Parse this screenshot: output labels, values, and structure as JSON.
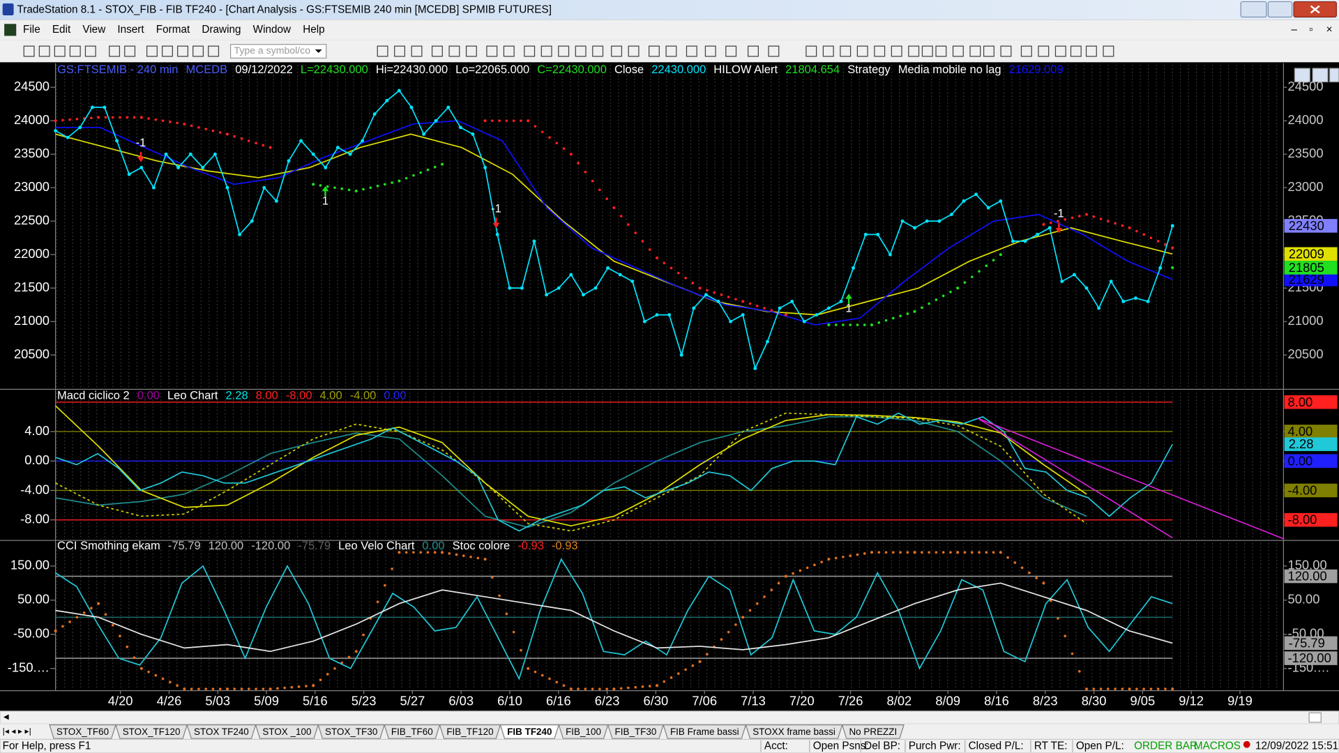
{
  "window": {
    "title": "TradeStation 8.1 - STOX_FIB - FIB TF240 - [Chart Analysis - GS:FTSEMIB  240 min  [MCEDB] SPMIB FUTURES]",
    "menu": [
      "File",
      "Edit",
      "View",
      "Insert",
      "Format",
      "Drawing",
      "Window",
      "Help"
    ],
    "symbol_box": "Type a symbol/co"
  },
  "chart_data": [
    {
      "type": "line",
      "header": [
        {
          "text": "GS:FTSEMIB - 240 min",
          "color": "#4a5cff"
        },
        {
          "text": "MCEDB",
          "color": "#4a5cff"
        },
        {
          "text": "09/12/2022",
          "color": "#ffffff"
        },
        {
          "text": "L=22430.000",
          "color": "#20e020"
        },
        {
          "text": "Hi=22430.000",
          "color": "#ffffff"
        },
        {
          "text": "Lo=22065.000",
          "color": "#ffffff"
        },
        {
          "text": "C=22430.000",
          "color": "#20e020"
        },
        {
          "text": "Close",
          "color": "#ffffff"
        },
        {
          "text": "22430.000",
          "color": "#00e5ff"
        },
        {
          "text": "HILOW Alert",
          "color": "#ffffff"
        },
        {
          "text": "21804.654",
          "color": "#20e020"
        },
        {
          "text": "Strategy",
          "color": "#ffffff"
        },
        {
          "text": "Media mobile no lag",
          "color": "#ffffff"
        },
        {
          "text": "21629.009",
          "color": "#1010ff"
        }
      ],
      "ylim": [
        20000,
        24860
      ],
      "yticks": [
        20500,
        21000,
        21500,
        22000,
        22500,
        23000,
        23500,
        24000,
        24500
      ],
      "series": [
        {
          "color": "#e0e000",
          "style": "line",
          "last_label": "22009",
          "values": [
            23800,
            23600,
            23400,
            23250,
            23150,
            23300,
            23600,
            23800,
            23600,
            23200,
            22500,
            21900,
            21600,
            21300,
            21150,
            21100,
            21300,
            21500,
            21900,
            22200,
            22400,
            22200,
            22009
          ]
        },
        {
          "color": "#1010ff",
          "style": "line",
          "last_label": "21629",
          "values": [
            23900,
            23900,
            23600,
            23300,
            23050,
            23150,
            23450,
            23700,
            23950,
            24000,
            23700,
            22700,
            22100,
            21800,
            21500,
            21250,
            21150,
            20950,
            21050,
            21600,
            22100,
            22500,
            22600,
            22300,
            21900,
            21629
          ]
        },
        {
          "color": "#ff2020",
          "style": "dots",
          "values": [
            24000,
            24050,
            24050,
            23950,
            23800,
            23600,
            null,
            null,
            null,
            null,
            24000,
            24000,
            23500,
            22700,
            21950,
            21500,
            21300,
            21100,
            null,
            null,
            null,
            null,
            null,
            22450,
            22600,
            22400,
            22100
          ]
        },
        {
          "color": "#20e020",
          "style": "dots",
          "last_label": "21805",
          "values": [
            null,
            null,
            null,
            null,
            null,
            null,
            23050,
            22950,
            23100,
            23350,
            null,
            null,
            null,
            null,
            null,
            null,
            null,
            null,
            20950,
            20950,
            21150,
            21500,
            22000,
            null,
            null,
            null,
            21805
          ]
        },
        {
          "color": "#00e5ff",
          "style": "line-dots",
          "last_label": "22430",
          "badge_color": "#8080ff",
          "values": [
            23850,
            23750,
            23900,
            24200,
            24200,
            23700,
            23200,
            23300,
            23000,
            23500,
            23300,
            23500,
            23300,
            23500,
            23000,
            22300,
            22500,
            23000,
            22800,
            23400,
            23700,
            23500,
            23300,
            23600,
            23500,
            23700,
            24100,
            24300,
            24450,
            24200,
            23800,
            24000,
            24200,
            23900,
            23800,
            23300,
            22300,
            21500,
            21500,
            22200,
            21400,
            21500,
            21700,
            21400,
            21500,
            21800,
            21700,
            21600,
            21000,
            21100,
            21100,
            20500,
            21200,
            21400,
            21300,
            21000,
            21100,
            20300,
            20700,
            21200,
            21300,
            21000,
            21100,
            21200,
            21300,
            21800,
            22300,
            22300,
            22000,
            22500,
            22400,
            22500,
            22500,
            22600,
            22800,
            22900,
            22700,
            22800,
            22200,
            22200,
            22300,
            22400,
            21600,
            21700,
            21500,
            21200,
            21600,
            21300,
            21350,
            21300,
            21800,
            22430
          ]
        }
      ],
      "signals": [
        {
          "label": "-1",
          "direction": "down"
        },
        {
          "label": "1",
          "direction": "up"
        },
        {
          "label": "-1",
          "direction": "down"
        },
        {
          "label": "1",
          "direction": "up"
        },
        {
          "label": "-1",
          "direction": "down"
        }
      ]
    },
    {
      "type": "line",
      "header": [
        {
          "text": "Macd ciclico 2",
          "color": "#ffffff"
        },
        {
          "text": "0.00",
          "color": "#a000a0"
        },
        {
          "text": "Leo Chart",
          "color": "#ffffff"
        },
        {
          "text": "2.28",
          "color": "#00e5e5"
        },
        {
          "text": "8.00",
          "color": "#ff2020"
        },
        {
          "text": "-8.00",
          "color": "#ff2020"
        },
        {
          "text": "4.00",
          "color": "#a0a000"
        },
        {
          "text": "-4.00",
          "color": "#a0a000"
        },
        {
          "text": "0.00",
          "color": "#2020ff"
        }
      ],
      "ylim": [
        -10.67,
        9.62
      ],
      "yticks": [
        {
          "value": 4,
          "label": "4.00"
        },
        {
          "value": 0,
          "label": "0.00"
        },
        {
          "value": -4,
          "label": "-4.00"
        },
        {
          "value": -8,
          "label": "-8.00"
        }
      ],
      "levels": [
        {
          "value": 8,
          "label": "8.00",
          "color": "#ff2020"
        },
        {
          "value": 4,
          "label": "4.00",
          "color": "#808000"
        },
        {
          "value": 0,
          "label": "0.00",
          "color": "#2020ff"
        },
        {
          "value": -4,
          "label": "-4.00",
          "color": "#808000"
        },
        {
          "value": -8,
          "label": "-8.00",
          "color": "#ff2020"
        }
      ],
      "series": [
        {
          "color": "#1f8f8f",
          "style": "line",
          "values": [
            -5,
            -6,
            -5.5,
            -4.5,
            -2,
            1,
            2.5,
            3.8,
            3,
            -2,
            -7.5,
            -9,
            -7,
            -3,
            0,
            2.5,
            4,
            4.8,
            6,
            6,
            5.5,
            4,
            0,
            -5,
            -7.5,
            null,
            null
          ]
        },
        {
          "color": "#d0d000",
          "style": "dashed",
          "values": [
            -3,
            -6,
            -7.5,
            -7.2,
            -4,
            -0.5,
            3,
            5,
            4,
            1.5,
            -3,
            -8.5,
            -9.5,
            -8,
            -5,
            -2,
            4,
            6.5,
            6.3,
            6,
            5.8,
            4.8,
            2,
            -4.5,
            -8.5,
            null,
            null
          ]
        },
        {
          "color": "#e0e000",
          "style": "line",
          "values": [
            7.5,
            2,
            -4,
            -6.3,
            -6,
            -3,
            0.5,
            3.5,
            4.6,
            2.5,
            -3,
            -7.5,
            -8.8,
            -7.5,
            -4.5,
            -0.5,
            3,
            5.5,
            6.3,
            6.2,
            5.9,
            5.3,
            3.8,
            -0.5,
            -4.5,
            null,
            null
          ]
        },
        {
          "color": "#20c8d8",
          "style": "line",
          "last_label": "2.28",
          "values": [
            0.5,
            -0.5,
            1,
            -1,
            -4,
            -3,
            -1.5,
            -2,
            -3,
            -3,
            -2,
            -1,
            0,
            1,
            2,
            3,
            4.5,
            3,
            1.5,
            0,
            -2,
            -8,
            -9.5,
            -8,
            -7,
            -6,
            -4,
            -3.5,
            -5,
            -4,
            -3,
            -1.5,
            -2,
            -4,
            -1,
            0,
            0,
            -0.5,
            6,
            5,
            6.5,
            5,
            5.5,
            5,
            6,
            4,
            -1,
            -1.5,
            -4,
            -5,
            -7.5,
            -5,
            -3,
            2.28
          ]
        }
      ]
    },
    {
      "type": "line",
      "header": [
        {
          "text": "CCI Smothing ekam",
          "color": "#ffffff"
        },
        {
          "text": "-75.79",
          "color": "#c0c0c0"
        },
        {
          "text": "120.00",
          "color": "#c0c0c0"
        },
        {
          "text": "-120.00",
          "color": "#c0c0c0"
        },
        {
          "text": "-75.79",
          "color": "#606060"
        },
        {
          "text": "Leo Velo Chart",
          "color": "#ffffff"
        },
        {
          "text": "0.00",
          "color": "#1f8f8f"
        },
        {
          "text": "Stoc colore",
          "color": "#ffffff"
        },
        {
          "text": "-0.93",
          "color": "#ff2020"
        },
        {
          "text": "-0.93",
          "color": "#e08020"
        }
      ],
      "ylim": [
        -212.5,
        222.5
      ],
      "yticks": [
        {
          "value": 150,
          "label": "150.00"
        },
        {
          "value": 50,
          "label": "50.00"
        },
        {
          "value": -50,
          "label": "-50.00"
        },
        {
          "value": -150,
          "label": "-150.…"
        }
      ],
      "levels": [
        {
          "value": 120,
          "label": "120.00",
          "color": "#a0a0a0"
        },
        {
          "value": 0,
          "color": "#1f6f6f"
        },
        {
          "value": -120,
          "label": "-120.00",
          "color": "#a0a0a0"
        }
      ],
      "series": [
        {
          "color": "#e07020",
          "style": "dots",
          "values": [
            -40,
            40,
            -150,
            -210,
            -210,
            -210,
            -200,
            -100,
            190,
            190,
            170,
            -150,
            -210,
            -210,
            -200,
            -130,
            0,
            120,
            170,
            190,
            190,
            190,
            190,
            100,
            -210,
            -210,
            -210
          ]
        },
        {
          "color": "#20c8d8",
          "style": "line",
          "values": [
            130,
            90,
            -20,
            -120,
            -140,
            -60,
            100,
            150,
            20,
            -120,
            30,
            150,
            40,
            -120,
            -150,
            -40,
            70,
            30,
            -40,
            -30,
            60,
            -60,
            -180,
            20,
            170,
            70,
            -100,
            -110,
            -70,
            -110,
            20,
            120,
            80,
            -110,
            -60,
            110,
            -40,
            -50,
            0,
            130,
            20,
            -150,
            -40,
            110,
            80,
            -100,
            -130,
            40,
            110,
            -30,
            -100,
            -20,
            60,
            40
          ]
        },
        {
          "color": "#e8e8e8",
          "style": "line",
          "last_label": "-75.79",
          "badge_color": "#a0a0a0",
          "values": [
            20,
            0,
            -50,
            -90,
            -80,
            -100,
            -70,
            -20,
            40,
            80,
            60,
            40,
            20,
            -40,
            -90,
            -85,
            -95,
            -80,
            -60,
            -10,
            40,
            80,
            100,
            60,
            20,
            -40,
            -75.79
          ]
        }
      ]
    }
  ],
  "x_axis": {
    "categories": [
      "4/20",
      "4/26",
      "5/03",
      "5/09",
      "5/16",
      "5/23",
      "5/27",
      "6/03",
      "6/10",
      "6/16",
      "6/23",
      "6/30",
      "7/06",
      "7/13",
      "7/20",
      "7/26",
      "8/02",
      "8/09",
      "8/16",
      "8/23",
      "8/30",
      "9/05",
      "9/12",
      "9/19"
    ]
  },
  "tabs": [
    "STOX_TF60",
    "STOX_TF120",
    "STOX TF240",
    "STOX _100",
    "STOX_TF30",
    "FIB_TF60",
    "FIB_TF120",
    "FIB TF240",
    "FIB_100",
    "FIB_TF30",
    "FIB Frame bassi",
    "STOXX frame bassi",
    "No PREZZI"
  ],
  "active_tab": 7,
  "status": {
    "help": "For Help, press F1",
    "fields": [
      "Acct:",
      "Open Psns:",
      "Del BP:",
      "Purch Pwr:",
      "Closed P/L:",
      "RT TE:",
      "Open P/L:"
    ],
    "order_bar": "ORDER BAR",
    "macros": "MACROS",
    "datetime": "12/09/2022 15:51"
  }
}
